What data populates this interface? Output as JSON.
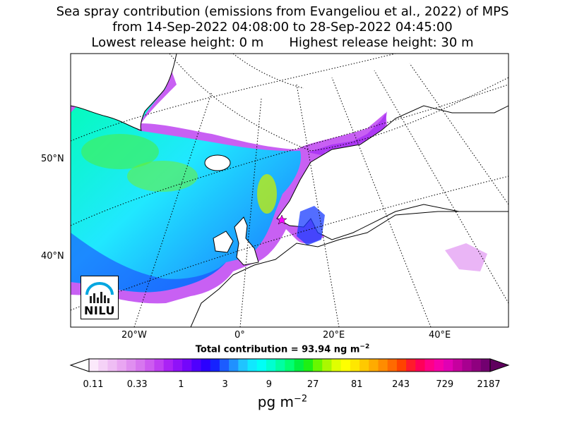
{
  "title": {
    "line1": "Sea spray contribution (emissions from Evangeliou et al., 2022) of MPS",
    "line2": "from 14-Sep-2022 04:08:00 to 28-Sep-2022 04:45:00",
    "lowest": "Lowest release height: 0 m",
    "highest": "Highest release height: 30 m"
  },
  "axes": {
    "lat_labels": [
      "50°N",
      "40°N"
    ],
    "lon_labels": [
      "20°W",
      "0°",
      "20°E",
      "40°E"
    ]
  },
  "total_prefix": "Total contribution = 93.94 ng m",
  "total_exp": "−2",
  "colorbar": {
    "ticks": [
      "0.11",
      "0.33",
      "1",
      "3",
      "9",
      "27",
      "81",
      "243",
      "729",
      "2187"
    ],
    "unit_base": "pg m",
    "unit_exp": "−2",
    "colors": [
      "#fbe9fb",
      "#f5d2f7",
      "#efbdf4",
      "#e9a6f2",
      "#e08ff0",
      "#d777ef",
      "#cd5cf0",
      "#bf3ff2",
      "#aa22f5",
      "#9012f8",
      "#7406fb",
      "#4f00fe",
      "#2b00ff",
      "#1522ff",
      "#1c5cff",
      "#2091ff",
      "#20c4ff",
      "#10e8ff",
      "#00fff6",
      "#00ffd0",
      "#00ffa2",
      "#00ff72",
      "#00f040",
      "#1ef014",
      "#68f700",
      "#aaf800",
      "#e0ff00",
      "#ffff00",
      "#ffe700",
      "#ffc900",
      "#ffab00",
      "#ff8c00",
      "#ff6a00",
      "#ff4300",
      "#ff1b2c",
      "#ff0059",
      "#ff0086",
      "#f600a7",
      "#e000b4",
      "#c6009f",
      "#a80090",
      "#8f007f",
      "#720070"
    ]
  },
  "logo": {
    "text": "NILU",
    "accent": "#00a6e0"
  },
  "station_marker_color": "#ff00ff"
}
